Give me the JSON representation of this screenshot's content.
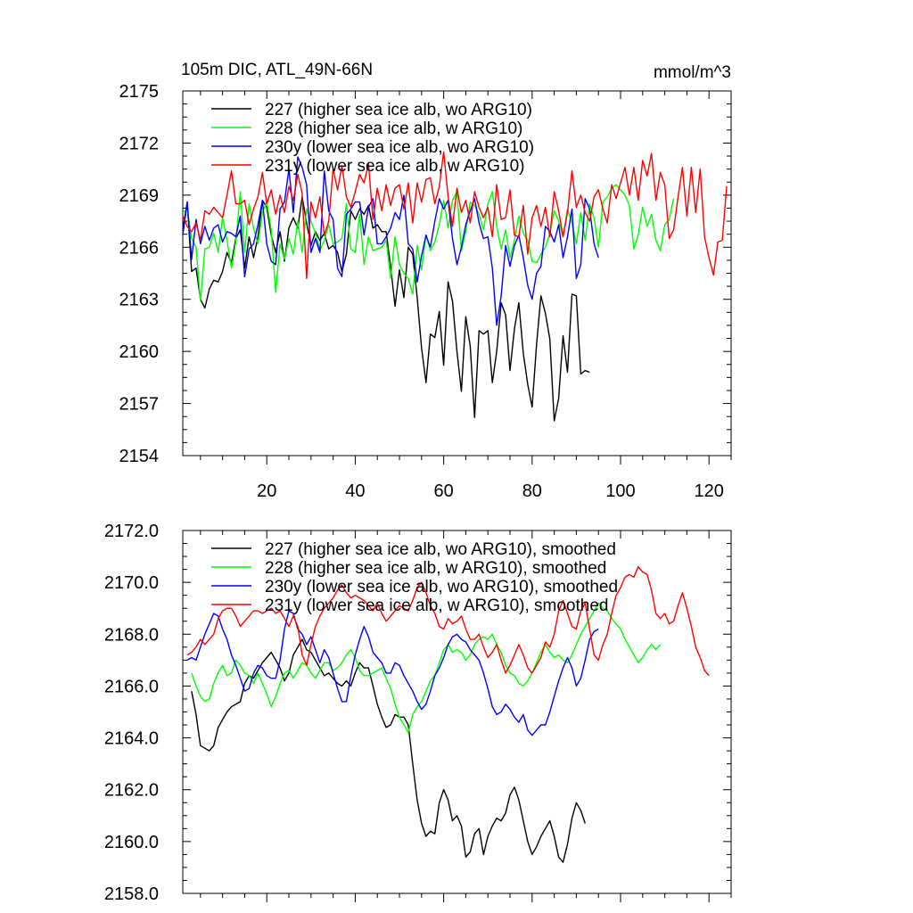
{
  "chart_data": [
    {
      "type": "line",
      "title": "105m DIC, ATL_49N-66N",
      "units": "mmol/m^3",
      "ylim": [
        2154,
        2175
      ],
      "yticks": [
        2154,
        2157,
        2160,
        2163,
        2166,
        2169,
        2172,
        2175
      ],
      "ytick_labels": [
        "2154",
        "2157",
        "2160",
        "2163",
        "2166",
        "2169",
        "2172",
        "2175"
      ],
      "xlim": [
        1,
        125
      ],
      "xticks": [
        20,
        40,
        60,
        80,
        100,
        120
      ],
      "xtick_labels": [
        "20",
        "40",
        "60",
        "80",
        "100",
        "120"
      ],
      "legend_position": "top-left",
      "series": [
        {
          "name": "227 (higher sea ice alb, wo ARG10)",
          "color": "#000000",
          "x_start": 1,
          "values": [
            2167.0,
            2168.6,
            2164.6,
            2164.8,
            2163.0,
            2162.5,
            2163.6,
            2164.1,
            2164.0,
            2164.6,
            2165.7,
            2165.1,
            2166.5,
            2167.0,
            2164.8,
            2166.6,
            2165.4,
            2166.6,
            2168.7,
            2168.3,
            2166.7,
            2165.7,
            2166.9,
            2165.2,
            2167.1,
            2167.7,
            2167.1,
            2168.9,
            2167.4,
            2166.1,
            2166.9,
            2166.4,
            2166.8,
            2165.9,
            2166.1,
            2165.7,
            2164.6,
            2165.6,
            2168.1,
            2167.6,
            2168.2,
            2167.9,
            2168.4,
            2167.1,
            2167.3,
            2166.9,
            2166.9,
            2164.9,
            2162.6,
            2164.7,
            2163.1,
            2166.0,
            2165.6,
            2163.1,
            2160.2,
            2158.2,
            2161.0,
            2160.8,
            2162.3,
            2159.2,
            2164.0,
            2162.9,
            2160.0,
            2157.7,
            2162.0,
            2160.3,
            2156.2,
            2161.2,
            2161.0,
            2161.2,
            2158.2,
            2160.0,
            2162.8,
            2162.1,
            2158.9,
            2161.3,
            2162.8,
            2159.9,
            2158.1,
            2156.8,
            2160.4,
            2163.2,
            2162.2,
            2160.7,
            2156.0,
            2157.3,
            2160.9,
            2158.8,
            2163.3,
            2163.2,
            2158.7,
            2158.9,
            2158.8
          ]
        },
        {
          "name": "228 (higher sea ice alb, w ARG10)",
          "color": "#00ff00",
          "x_start": 1,
          "values": [
            2168.0,
            2168.2,
            2166.5,
            2166.0,
            2162.9,
            2165.9,
            2166.0,
            2166.8,
            2165.7,
            2167.7,
            2166.4,
            2164.8,
            2166.3,
            2169.2,
            2165.7,
            2168.5,
            2167.1,
            2166.2,
            2168.0,
            2168.6,
            2167.0,
            2163.4,
            2166.2,
            2165.3,
            2166.5,
            2165.6,
            2167.5,
            2165.7,
            2168.2,
            2167.5,
            2166.8,
            2165.8,
            2166.4,
            2167.3,
            2166.2,
            2166.3,
            2166.5,
            2168.5,
            2165.9,
            2165.7,
            2167.9,
            2165.0,
            2166.6,
            2165.8,
            2165.9,
            2166.0,
            2166.4,
            2164.2,
            2166.6,
            2165.0,
            2164.5,
            2164.2,
            2163.3,
            2166.1,
            2164.7,
            2166.7,
            2165.8,
            2166.3,
            2167.3,
            2168.7,
            2167.1,
            2168.7,
            2169.2,
            2165.8,
            2166.9,
            2168.6,
            2168.4,
            2167.9,
            2167.0,
            2168.5,
            2169.2,
            2167.2,
            2165.9,
            2167.0,
            2165.4,
            2166.4,
            2167.8,
            2166.8,
            2166.4,
            2165.2,
            2165.1,
            2165.6,
            2166.0,
            2166.8,
            2168.1,
            2167.5,
            2166.6,
            2168.2,
            2167.4,
            2166.2,
            2168.0,
            2166.4,
            2168.5,
            2167.7,
            2166.0,
            2168.6,
            2168.9,
            2169.4,
            2169.6,
            2169.3,
            2169.0,
            2168.4,
            2165.9,
            2166.7,
            2168.3,
            2167.2,
            2167.9,
            2166.4,
            2165.8,
            2167.3,
            2167.6,
            2168.8
          ]
        },
        {
          "name": "230y (lower sea ice alb, wo ARG10)",
          "color": "#0000ff",
          "x_start": 1,
          "values": [
            2166.7,
            2168.6,
            2165.3,
            2167.6,
            2166.2,
            2167.2,
            2166.4,
            2167.1,
            2167.3,
            2166.3,
            2166.9,
            2166.8,
            2166.6,
            2167.8,
            2164.3,
            2165.9,
            2166.2,
            2167.3,
            2168.7,
            2166.2,
            2165.2,
            2165.0,
            2168.2,
            2168.6,
            2170.5,
            2168.0,
            2171.2,
            2170.6,
            2169.6,
            2165.7,
            2166.5,
            2165.7,
            2170.4,
            2168.1,
            2167.6,
            2164.8,
            2164.3,
            2167.9,
            2168.2,
            2168.6,
            2168.6,
            2166.7,
            2168.3,
            2168.8,
            2166.2,
            2166.2,
            2166.6,
            2167.1,
            2168.0,
            2167.6,
            2169.0,
            2166.2,
            2165.9,
            2164.0,
            2165.5,
            2166.7,
            2166.0,
            2167.5,
            2168.8,
            2168.2,
            2168.7,
            2166.5,
            2165.0,
            2166.0,
            2167.3,
            2168.1,
            2168.8,
            2167.4,
            2166.5,
            2166.6,
            2164.8,
            2161.5,
            2163.2,
            2166.1,
            2164.9,
            2166.1,
            2166.7,
            2165.4,
            2163.8,
            2163.0,
            2164.5,
            2164.9,
            2167.2,
            2166.9,
            2166.3,
            2167.3,
            2165.4,
            2166.6,
            2168.2,
            2164.2,
            2165.0,
            2168.8,
            2168.2,
            2166.2,
            2165.4
          ]
        },
        {
          "name": "231y (lower sea ice alb, w ARG10)",
          "color": "#ff0000",
          "x_start": 1,
          "values": [
            2167.8,
            2167.2,
            2166.9,
            2167.4,
            2166.4,
            2168.1,
            2167.9,
            2168.3,
            2168.0,
            2167.7,
            2169.0,
            2170.4,
            2168.5,
            2168.5,
            2168.7,
            2167.3,
            2168.2,
            2168.9,
            2170.3,
            2168.5,
            2169.3,
            2167.9,
            2169.0,
            2168.0,
            2169.5,
            2168.7,
            2170.2,
            2169.1,
            2164.2,
            2168.6,
            2167.7,
            2168.9,
            2166.7,
            2167.5,
            2170.5,
            2169.3,
            2170.7,
            2168.9,
            2168.3,
            2169.2,
            2170.2,
            2169.7,
            2170.8,
            2167.6,
            2169.4,
            2168.1,
            2169.6,
            2168.4,
            2169.4,
            2169.6,
            2168.2,
            2169.7,
            2167.4,
            2169.7,
            2168.6,
            2169.9,
            2170.0,
            2168.5,
            2169.5,
            2171.5,
            2168.9,
            2167.2,
            2169.4,
            2168.0,
            2168.7,
            2167.4,
            2169.2,
            2168.3,
            2167.7,
            2168.3,
            2166.6,
            2169.6,
            2167.6,
            2167.7,
            2169.3,
            2166.7,
            2166.6,
            2168.4,
            2165.6,
            2167.7,
            2168.4,
            2167.2,
            2168.3,
            2166.6,
            2169.2,
            2168.1,
            2166.6,
            2168.0,
            2170.4,
            2168.3,
            2169.0,
            2168.0,
            2167.5,
            2168.9,
            2169.3,
            2168.2,
            2167.4,
            2169.6,
            2168.8,
            2169.7,
            2170.6,
            2169.0,
            2170.6,
            2168.7,
            2171.0,
            2170.1,
            2171.4,
            2168.7,
            2170.3,
            2169.6,
            2166.5,
            2167.0,
            2168.9,
            2170.6,
            2167.8,
            2170.6,
            2168.0,
            2170.5,
            2166.6,
            2165.4,
            2164.4,
            2166.3,
            2166.4,
            2169.5
          ]
        }
      ]
    },
    {
      "type": "line",
      "ylim": [
        2158.0,
        2172.0
      ],
      "yticks": [
        2158,
        2160,
        2162,
        2164,
        2166,
        2168,
        2170,
        2172
      ],
      "ytick_labels": [
        "2158.0",
        "2160.0",
        "2162.0",
        "2164.0",
        "2166.0",
        "2168.0",
        "2170.0",
        "2172.0"
      ],
      "xlim": [
        1,
        125
      ],
      "xticks": [
        20,
        40,
        60,
        80,
        100,
        120
      ],
      "legend_position": "top-left",
      "series": [
        {
          "name": "227 (higher sea ice alb, wo ARG10), smoothed",
          "color": "#000000",
          "x_start": 3,
          "values": [
            2165.8,
            2164.9,
            2163.7,
            2163.6,
            2163.5,
            2163.7,
            2164.4,
            2164.7,
            2165.0,
            2165.2,
            2165.3,
            2165.4,
            2166.1,
            2166.4,
            2166.3,
            2166.6,
            2166.9,
            2167.1,
            2167.3,
            2167.0,
            2166.7,
            2166.2,
            2166.5,
            2167.2,
            2167.5,
            2167.8,
            2167.4,
            2167.3,
            2167.0,
            2166.7,
            2166.4,
            2166.5,
            2166.3,
            2166.1,
            2166.0,
            2166.2,
            2166.0,
            2166.5,
            2166.9,
            2166.7,
            2166.7,
            2166.0,
            2165.3,
            2164.8,
            2164.4,
            2164.5,
            2164.9,
            2164.8,
            2164.8,
            2164.5,
            2163.0,
            2161.6,
            2160.7,
            2160.2,
            2160.4,
            2160.3,
            2161.5,
            2162.0,
            2161.6,
            2160.8,
            2161.0,
            2160.6,
            2159.4,
            2159.6,
            2160.3,
            2160.5,
            2159.5,
            2160.2,
            2160.6,
            2160.9,
            2160.8,
            2161.1,
            2161.8,
            2162.1,
            2161.6,
            2160.8,
            2160.0,
            2159.5,
            2159.8,
            2160.2,
            2160.5,
            2160.8,
            2160.2,
            2159.4,
            2159.2,
            2159.9,
            2160.9,
            2161.5,
            2161.2,
            2160.7
          ]
        },
        {
          "name": "228 (higher sea ice alb, w ARG10), smoothed",
          "color": "#00ff00",
          "x_start": 3,
          "values": [
            2166.5,
            2166.0,
            2165.6,
            2165.4,
            2165.5,
            2166.1,
            2166.5,
            2166.8,
            2166.4,
            2166.5,
            2167.0,
            2166.8,
            2166.5,
            2166.4,
            2166.1,
            2166.5,
            2166.1,
            2165.7,
            2165.2,
            2165.6,
            2166.1,
            2166.5,
            2166.6,
            2166.3,
            2166.6,
            2166.9,
            2166.8,
            2166.5,
            2166.3,
            2166.6,
            2166.9,
            2166.9,
            2166.6,
            2166.7,
            2166.9,
            2167.2,
            2167.4,
            2167.1,
            2166.6,
            2166.4,
            2166.4,
            2166.5,
            2166.6,
            2166.7,
            2166.3,
            2165.9,
            2165.3,
            2164.8,
            2164.5,
            2164.2,
            2164.9,
            2165.2,
            2165.4,
            2165.8,
            2166.2,
            2166.4,
            2166.9,
            2167.4,
            2167.6,
            2167.3,
            2167.4,
            2167.3,
            2167.0,
            2167.2,
            2167.6,
            2167.8,
            2167.9,
            2167.8,
            2168.0,
            2167.6,
            2167.3,
            2166.8,
            2166.5,
            2166.4,
            2166.1,
            2166.0,
            2166.2,
            2166.5,
            2166.9,
            2167.3,
            2167.6,
            2167.3,
            2167.1,
            2167.2,
            2167.0,
            2166.9,
            2167.2,
            2167.6,
            2168.0,
            2168.3,
            2168.6,
            2168.9,
            2169.2,
            2169.0,
            2168.9,
            2168.6,
            2168.4,
            2168.2,
            2167.8,
            2167.5,
            2167.2,
            2166.9,
            2167.1,
            2167.4,
            2167.6,
            2167.4,
            2167.6
          ]
        },
        {
          "name": "230y (lower sea ice alb, wo ARG10), smoothed",
          "color": "#0000ff",
          "x_start": 2,
          "values": [
            2167.0,
            2167.1,
            2167.0,
            2167.5,
            2168.0,
            2168.4,
            2168.8,
            2168.7,
            2168.2,
            2167.8,
            2167.2,
            2166.8,
            2166.3,
            2165.8,
            2165.9,
            2166.5,
            2166.8,
            2166.7,
            2166.4,
            2166.3,
            2166.3,
            2167.0,
            2168.2,
            2168.9,
            2168.8,
            2168.2,
            2168.0,
            2167.6,
            2167.9,
            2167.4,
            2166.9,
            2167.4,
            2167.1,
            2166.5,
            2165.9,
            2165.4,
            2165.4,
            2166.4,
            2167.2,
            2167.8,
            2168.3,
            2167.9,
            2167.3,
            2167.1,
            2166.9,
            2166.5,
            2166.5,
            2166.9,
            2166.8,
            2166.4,
            2166.1,
            2165.8,
            2165.4,
            2165.1,
            2165.3,
            2165.8,
            2166.4,
            2166.7,
            2167.1,
            2167.6,
            2167.9,
            2168.0,
            2167.8,
            2167.7,
            2167.4,
            2167.2,
            2167.0,
            2166.5,
            2165.9,
            2165.2,
            2164.9,
            2165.0,
            2165.3,
            2165.1,
            2164.8,
            2164.6,
            2164.9,
            2164.3,
            2164.1,
            2164.3,
            2164.5,
            2164.5,
            2165.0,
            2165.6,
            2166.2,
            2166.7,
            2167.1,
            2166.7,
            2166.0,
            2166.3,
            2167.0,
            2167.8,
            2168.1,
            2168.2
          ]
        },
        {
          "name": "231y (lower sea ice alb, w ARG10), smoothed",
          "color": "#ff0000",
          "x_start": 2,
          "values": [
            2167.2,
            2167.3,
            2167.5,
            2167.8,
            2167.6,
            2167.8,
            2168.0,
            2168.6,
            2168.9,
            2169.0,
            2169.0,
            2168.7,
            2168.3,
            2168.5,
            2168.7,
            2168.9,
            2168.9,
            2168.8,
            2168.9,
            2169.0,
            2168.8,
            2168.9,
            2168.6,
            2168.3,
            2168.7,
            2168.3,
            2167.2,
            2166.8,
            2167.6,
            2168.3,
            2168.7,
            2169.0,
            2169.2,
            2169.4,
            2169.7,
            2169.9,
            2169.6,
            2169.4,
            2169.5,
            2169.4,
            2169.3,
            2169.1,
            2168.9,
            2169.2,
            2168.8,
            2168.5,
            2168.7,
            2168.9,
            2169.1,
            2169.0,
            2168.9,
            2169.3,
            2169.8,
            2170.0,
            2169.6,
            2169.1,
            2168.8,
            2168.3,
            2168.2,
            2168.6,
            2168.4,
            2168.5,
            2168.7,
            2168.2,
            2167.8,
            2167.8,
            2168.0,
            2167.5,
            2167.1,
            2167.3,
            2167.6,
            2167.0,
            2166.5,
            2166.8,
            2167.2,
            2167.6,
            2167.2,
            2166.7,
            2166.5,
            2166.8,
            2167.1,
            2167.7,
            2167.5,
            2168.0,
            2168.9,
            2169.3,
            2168.8,
            2168.3,
            2168.2,
            2168.9,
            2169.2,
            2168.2,
            2167.2,
            2167.0,
            2167.6,
            2168.0,
            2168.8,
            2169.5,
            2169.8,
            2170.2,
            2170.3,
            2170.2,
            2170.6,
            2170.4,
            2170.3,
            2169.7,
            2168.8,
            2168.6,
            2168.8,
            2168.4,
            2168.5,
            2169.1,
            2169.6,
            2169.0,
            2168.3,
            2167.5,
            2167.1,
            2166.6,
            2166.4
          ]
        }
      ]
    }
  ]
}
